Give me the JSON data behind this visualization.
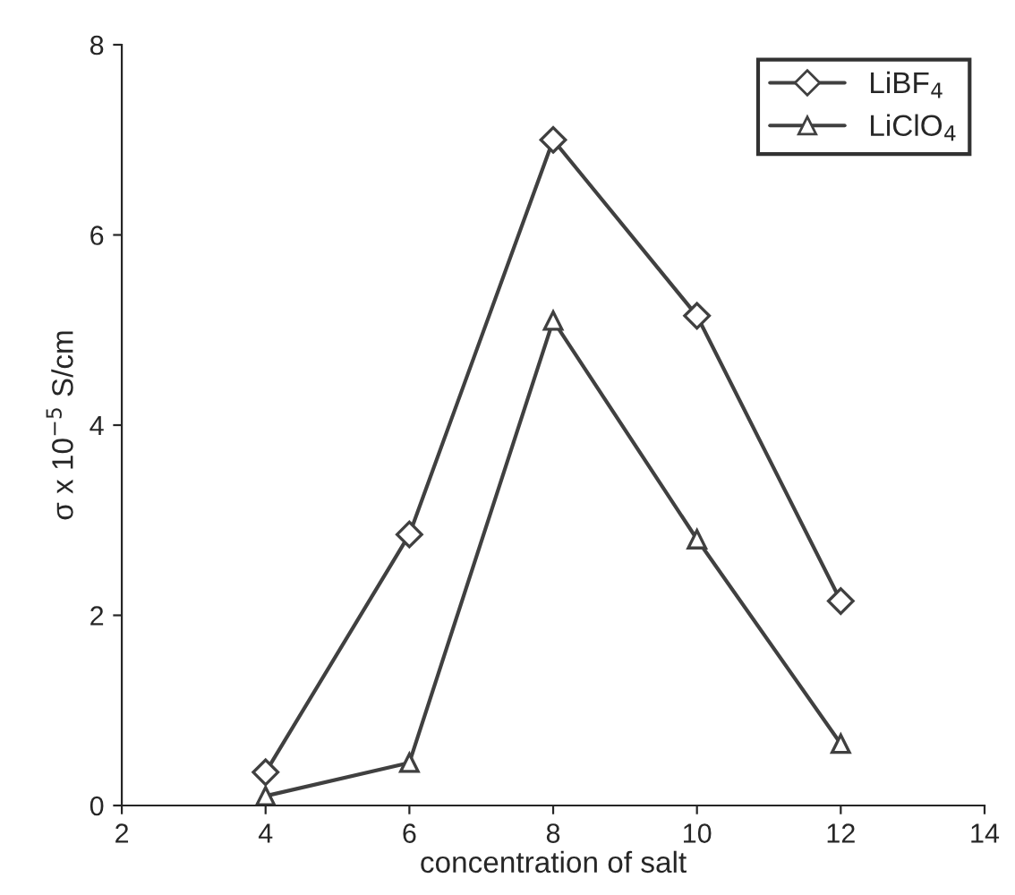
{
  "chart_data": {
    "type": "line",
    "xlabel": "concentration of salt",
    "ylabel": "σ x 10$^{−5}$ S/cm",
    "x": [
      4,
      6,
      8,
      10,
      12
    ],
    "series": [
      {
        "name": "LiBF$_{4}$",
        "color": "#404040",
        "marker": "diamond",
        "values": [
          0.35,
          2.85,
          7.0,
          5.15,
          2.15
        ]
      },
      {
        "name": "LiClO$_{4}$",
        "color": "#404040",
        "marker": "triangle",
        "values": [
          0.1,
          0.45,
          5.1,
          2.8,
          0.65
        ]
      }
    ],
    "xlim": [
      2,
      14
    ],
    "xticks": [
      2,
      4,
      6,
      8,
      10,
      12,
      14
    ],
    "ylim": [
      0,
      8
    ],
    "yticks": [
      0,
      2,
      4,
      6,
      8
    ],
    "grid": false,
    "legend": "top right",
    "line_style": "solid"
  }
}
